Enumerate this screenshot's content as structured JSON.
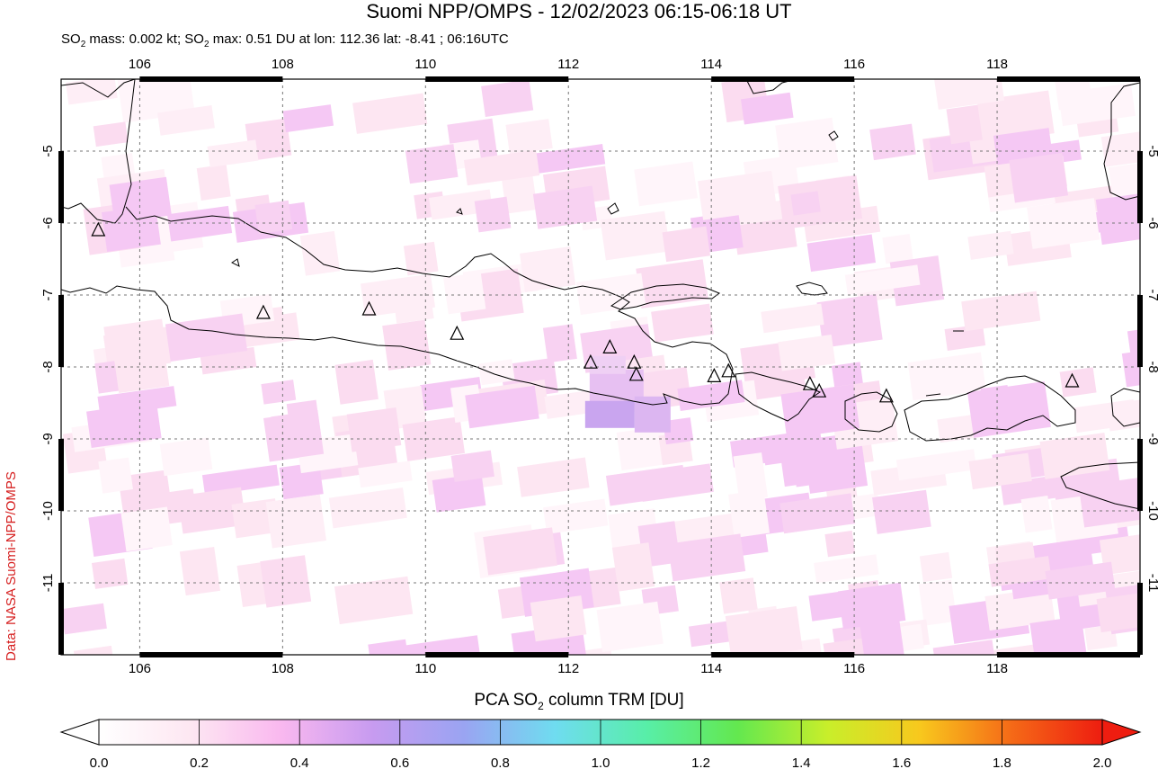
{
  "header": {
    "title": "Suomi NPP/OMPS - 12/02/2023 06:15-06:18 UT",
    "subtitle_pre": "SO",
    "subtitle_sub": "2",
    "subtitle_mid": " mass: 0.002 kt; SO",
    "subtitle_sub2": "2",
    "subtitle_post": " max: 0.51 DU at lon: 112.36 lat: -8.41 ; 06:16UTC"
  },
  "credit": "Data: NASA Suomi-NPP/OMPS",
  "map": {
    "lon_ticks": [
      "106",
      "108",
      "110",
      "112",
      "114",
      "116",
      "118"
    ],
    "lat_ticks": [
      "-5",
      "-6",
      "-7",
      "-8",
      "-9",
      "-10",
      "-11"
    ],
    "lon_range": [
      104.9,
      120.0
    ],
    "lat_range": [
      -12.0,
      -4.0
    ],
    "gridlines": "dashed",
    "volcanoes": [
      {
        "lon": 105.42,
        "lat": -6.1
      },
      {
        "lon": 107.73,
        "lat": -7.25
      },
      {
        "lon": 109.21,
        "lat": -7.2
      },
      {
        "lon": 110.44,
        "lat": -7.54
      },
      {
        "lon": 112.31,
        "lat": -7.94
      },
      {
        "lon": 112.58,
        "lat": -7.73
      },
      {
        "lon": 112.92,
        "lat": -7.94
      },
      {
        "lon": 112.95,
        "lat": -8.11
      },
      {
        "lon": 114.04,
        "lat": -8.13
      },
      {
        "lon": 114.24,
        "lat": -8.06
      },
      {
        "lon": 115.38,
        "lat": -8.24
      },
      {
        "lon": 115.51,
        "lat": -8.34
      },
      {
        "lon": 116.45,
        "lat": -8.41
      },
      {
        "lon": 119.05,
        "lat": -8.2
      }
    ],
    "so2_max": {
      "lon": 112.36,
      "lat": -8.41,
      "value": 0.51
    }
  },
  "colorbar": {
    "title_pre": "PCA SO",
    "title_sub": "2",
    "title_post": " column TRM [DU]",
    "ticks": [
      "0.0",
      "0.2",
      "0.4",
      "0.6",
      "0.8",
      "1.0",
      "1.2",
      "1.4",
      "1.6",
      "1.8",
      "2.0"
    ],
    "range": [
      0.0,
      2.0
    ],
    "colors": [
      "#ffffff",
      "#fde7f2",
      "#f9b8ef",
      "#c79bf0",
      "#9aa4f2",
      "#6fdcf0",
      "#58eea8",
      "#63e84f",
      "#c9ee2a",
      "#f8c81d",
      "#f56a17",
      "#ee1d10"
    ]
  }
}
